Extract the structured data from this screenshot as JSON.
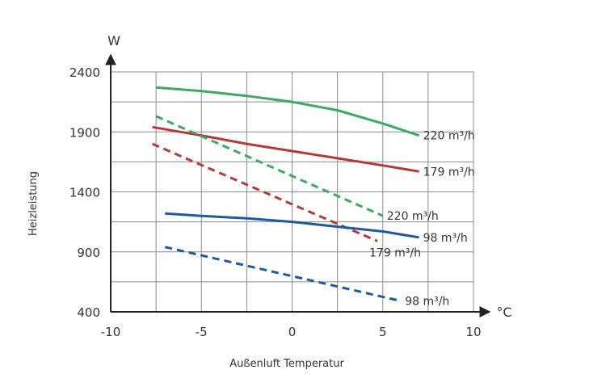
{
  "chart_data": {
    "type": "line",
    "xlabel": "Außenluft Temperatur",
    "ylabel": "Heizleistung",
    "x_unit": "°C",
    "y_unit": "W",
    "xlim": [
      -10,
      10
    ],
    "ylim": [
      400,
      2400
    ],
    "x_ticks": [
      "-10",
      "-5",
      "0",
      "5",
      "10"
    ],
    "y_ticks": [
      "400",
      "900",
      "1400",
      "1900",
      "2400"
    ],
    "grid": true,
    "legend": "none",
    "series": [
      {
        "name": "220 m³/h",
        "color": "#3daa62",
        "dash": "solid",
        "x": [
          -7.5,
          -5,
          -2.5,
          0,
          2.5,
          5,
          7
        ],
        "y": [
          2270,
          2240,
          2200,
          2150,
          2080,
          1970,
          1870
        ]
      },
      {
        "name": "179 m³/h",
        "color": "#b33a3a",
        "dash": "solid",
        "x": [
          -7.7,
          -5,
          -2.5,
          0,
          2.5,
          5,
          7
        ],
        "y": [
          1940,
          1870,
          1800,
          1740,
          1680,
          1620,
          1570
        ]
      },
      {
        "name": "220 m³/h",
        "color": "#3daa62",
        "dash": "dashed",
        "x": [
          -7.5,
          5
        ],
        "y": [
          2030,
          1200
        ]
      },
      {
        "name": "179 m³/h",
        "color": "#b33a3a",
        "dash": "dashed",
        "x": [
          -7.7,
          4.7
        ],
        "y": [
          1800,
          990
        ]
      },
      {
        "name": "98 m³/h",
        "color": "#1f5a9c",
        "dash": "solid",
        "x": [
          -7,
          -5,
          -2.5,
          0,
          2.5,
          5,
          7
        ],
        "y": [
          1220,
          1200,
          1180,
          1150,
          1110,
          1070,
          1020
        ]
      },
      {
        "name": "98 m³/h",
        "color": "#1f5a9c",
        "dash": "dashed",
        "x": [
          -7,
          6
        ],
        "y": [
          940,
          490
        ]
      }
    ]
  }
}
